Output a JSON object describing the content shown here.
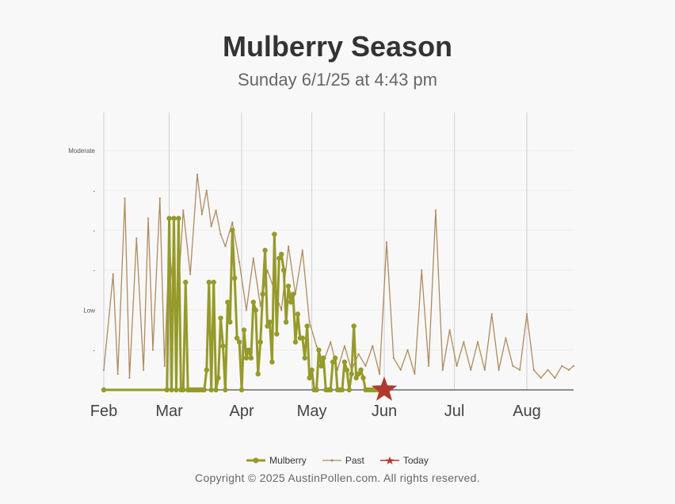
{
  "title": "Mulberry Season",
  "subtitle": "Sunday 6/1/25 at 4:43 pm",
  "copyright": "Copyright © 2025 AustinPollen.com.  All rights reserved.",
  "colors": {
    "mulberry": "#969a2a",
    "past": "#b08a5e",
    "today": "#b03a2e"
  },
  "chart_data": {
    "type": "line",
    "title": "Mulberry Season",
    "x_axis": {
      "type": "date",
      "min": "2025-02-01",
      "max": "2025-08-21",
      "ticks": [
        "Feb",
        "Mar",
        "Apr",
        "May",
        "Jun",
        "Jul",
        "Aug"
      ]
    },
    "y_axis": {
      "min": 0,
      "max": 6,
      "ticks": [
        {
          "value": 1,
          "label": "-"
        },
        {
          "value": 2,
          "label": "Low"
        },
        {
          "value": 3,
          "label": "-"
        },
        {
          "value": 4,
          "label": "-"
        },
        {
          "value": 5,
          "label": "-"
        },
        {
          "value": 6,
          "label": "Moderate"
        }
      ]
    },
    "grid": true,
    "legend": [
      "Mulberry",
      "Past",
      "Today"
    ],
    "legend_position": "bottom",
    "series": [
      {
        "name": "Mulberry",
        "x": [
          "2025-02-01",
          "2025-02-28",
          "2025-03-01",
          "2025-03-02",
          "2025-03-03",
          "2025-03-04",
          "2025-03-05",
          "2025-03-06",
          "2025-03-07",
          "2025-03-08",
          "2025-03-09",
          "2025-03-10",
          "2025-03-11",
          "2025-03-12",
          "2025-03-13",
          "2025-03-14",
          "2025-03-15",
          "2025-03-16",
          "2025-03-17",
          "2025-03-18",
          "2025-03-19",
          "2025-03-20",
          "2025-03-21",
          "2025-03-22",
          "2025-03-23",
          "2025-03-24",
          "2025-03-25",
          "2025-03-26",
          "2025-03-27",
          "2025-03-28",
          "2025-03-29",
          "2025-03-30",
          "2025-03-31",
          "2025-04-01",
          "2025-04-02",
          "2025-04-03",
          "2025-04-04",
          "2025-04-05",
          "2025-04-06",
          "2025-04-07",
          "2025-04-08",
          "2025-04-09",
          "2025-04-10",
          "2025-04-11",
          "2025-04-12",
          "2025-04-13",
          "2025-04-14",
          "2025-04-15",
          "2025-04-16",
          "2025-04-17",
          "2025-04-18",
          "2025-04-19",
          "2025-04-20",
          "2025-04-21",
          "2025-04-22",
          "2025-04-23",
          "2025-04-24",
          "2025-04-25",
          "2025-04-26",
          "2025-04-27",
          "2025-04-28",
          "2025-04-29",
          "2025-04-30",
          "2025-05-01",
          "2025-05-02",
          "2025-05-03",
          "2025-05-04",
          "2025-05-05",
          "2025-05-06",
          "2025-05-07",
          "2025-05-08",
          "2025-05-09",
          "2025-05-10",
          "2025-05-11",
          "2025-05-12",
          "2025-05-13",
          "2025-05-14",
          "2025-05-15",
          "2025-05-16",
          "2025-05-17",
          "2025-05-18",
          "2025-05-19",
          "2025-05-20",
          "2025-05-21",
          "2025-05-22",
          "2025-05-23",
          "2025-05-24",
          "2025-05-25",
          "2025-05-26",
          "2025-05-27",
          "2025-05-28",
          "2025-05-29",
          "2025-05-30",
          "2025-05-31",
          "2025-06-01"
        ],
        "values": [
          0,
          0,
          4.3,
          0,
          4.3,
          0,
          4.3,
          0,
          0,
          2.7,
          0,
          0,
          0,
          0,
          0,
          0,
          0,
          0,
          0.5,
          2.7,
          0,
          2.7,
          0,
          0.3,
          1.8,
          1.1,
          0,
          2.2,
          1.7,
          4.0,
          2.8,
          1.3,
          1.2,
          0,
          1.5,
          0.8,
          1.0,
          0.8,
          2.2,
          2.0,
          0.4,
          1.2,
          2.4,
          3.5,
          1.6,
          1.7,
          0.7,
          3.9,
          1.4,
          3.3,
          3.4,
          3.0,
          1.7,
          2.6,
          2.2,
          2.4,
          1.2,
          1.9,
          1.3,
          1.3,
          0.8,
          1.6,
          0.3,
          0.5,
          0,
          0,
          1.0,
          0.6,
          0.8,
          0,
          0,
          0,
          0.7,
          0.8,
          0,
          0,
          0,
          0.7,
          0.5,
          0,
          0.4,
          1.6,
          0.3,
          0.4,
          0.5,
          0.3,
          0,
          0,
          0,
          0,
          0,
          0,
          0,
          0,
          0
        ]
      },
      {
        "name": "Past",
        "x": [
          "2025-02-01",
          "2025-02-05",
          "2025-02-07",
          "2025-02-10",
          "2025-02-12",
          "2025-02-15",
          "2025-02-18",
          "2025-02-20",
          "2025-02-22",
          "2025-02-25",
          "2025-02-27",
          "2025-03-01",
          "2025-03-04",
          "2025-03-07",
          "2025-03-10",
          "2025-03-13",
          "2025-03-15",
          "2025-03-17",
          "2025-03-19",
          "2025-03-21",
          "2025-03-23",
          "2025-03-25",
          "2025-03-28",
          "2025-03-31",
          "2025-04-03",
          "2025-04-06",
          "2025-04-09",
          "2025-04-12",
          "2025-04-15",
          "2025-04-18",
          "2025-04-21",
          "2025-04-24",
          "2025-04-27",
          "2025-04-30",
          "2025-05-03",
          "2025-05-06",
          "2025-05-09",
          "2025-05-12",
          "2025-05-15",
          "2025-05-18",
          "2025-05-21",
          "2025-05-24",
          "2025-05-27",
          "2025-05-30",
          "2025-06-02",
          "2025-06-05",
          "2025-06-08",
          "2025-06-11",
          "2025-06-14",
          "2025-06-17",
          "2025-06-20",
          "2025-06-23",
          "2025-06-26",
          "2025-06-29",
          "2025-07-02",
          "2025-07-05",
          "2025-07-08",
          "2025-07-11",
          "2025-07-14",
          "2025-07-17",
          "2025-07-20",
          "2025-07-23",
          "2025-07-26",
          "2025-07-29",
          "2025-08-01",
          "2025-08-04",
          "2025-08-07",
          "2025-08-10",
          "2025-08-13",
          "2025-08-16",
          "2025-08-19",
          "2025-08-21"
        ],
        "values": [
          0.5,
          2.9,
          0.4,
          4.8,
          0.3,
          3.8,
          0.5,
          4.3,
          1.0,
          4.8,
          0.6,
          3.6,
          1.7,
          4.5,
          2.9,
          5.4,
          4.4,
          5.0,
          4.1,
          4.5,
          3.9,
          3.6,
          4.2,
          3.2,
          2.0,
          3.3,
          2.1,
          3.0,
          2.5,
          2.0,
          3.6,
          2.4,
          3.5,
          1.7,
          1.1,
          0.7,
          1.2,
          0.5,
          1.1,
          0.5,
          0.9,
          0.6,
          1.1,
          0.4,
          3.7,
          0.8,
          0.5,
          1.0,
          0.4,
          3.0,
          0.6,
          4.5,
          0.5,
          1.5,
          0.6,
          1.2,
          0.5,
          1.2,
          0.5,
          1.9,
          0.5,
          1.3,
          0.6,
          0.5,
          1.9,
          0.5,
          0.3,
          0.5,
          0.3,
          0.6,
          0.5,
          0.6
        ]
      },
      {
        "name": "Today",
        "x": [
          "2025-06-01"
        ],
        "values": [
          0
        ]
      }
    ]
  }
}
